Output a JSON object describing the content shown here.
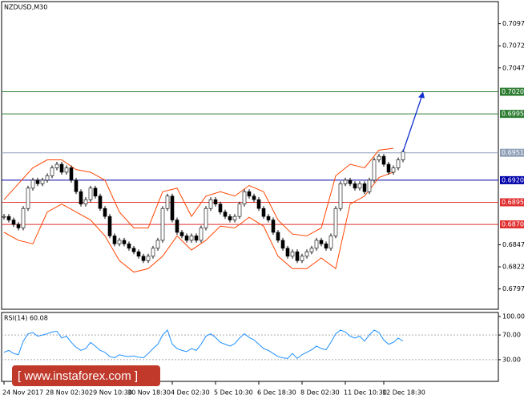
{
  "chart_data": {
    "type": "candlestick",
    "title": "NZDUSD,M30",
    "categories": [
      "24 Nov 2017",
      null,
      null,
      null,
      null,
      null,
      null,
      null,
      null,
      "28 Nov 02:30",
      null,
      null,
      null,
      null,
      null,
      null,
      null,
      null,
      "29 Nov 10:30",
      null,
      null,
      null,
      null,
      null,
      null,
      null,
      "30 Nov 18:30",
      null,
      null,
      null,
      null,
      null,
      null,
      null,
      null,
      "4 Dec 02:30",
      null,
      null,
      null,
      null,
      null,
      null,
      null,
      null,
      "5 Dec 10:30",
      null,
      null,
      null,
      null,
      null,
      null,
      null,
      null,
      "6 Dec 18:30",
      null,
      null,
      null,
      null,
      null,
      null,
      null,
      null,
      "8 Dec 02:30",
      null,
      null,
      null,
      null,
      null,
      null,
      null,
      null,
      "11 Dec 10:30",
      null,
      null,
      null,
      null,
      null,
      null,
      null,
      "12 Dec 18:30",
      null,
      null,
      null,
      null
    ],
    "close": [
      0.6879,
      0.6875,
      0.687,
      0.6866,
      0.6888,
      0.6911,
      0.692,
      0.6916,
      0.692,
      0.6925,
      0.6934,
      0.6938,
      0.6929,
      0.6934,
      0.692,
      0.6907,
      0.6893,
      0.6898,
      0.6911,
      0.6902,
      0.6888,
      0.6879,
      0.6857,
      0.6848,
      0.6852,
      0.6848,
      0.6843,
      0.6839,
      0.6834,
      0.6829,
      0.6834,
      0.6843,
      0.6852,
      0.6888,
      0.6902,
      0.6875,
      0.6861,
      0.6857,
      0.6852,
      0.6857,
      0.6852,
      0.6866,
      0.6888,
      0.6898,
      0.6893,
      0.6884,
      0.6879,
      0.6875,
      0.6879,
      0.6893,
      0.6907,
      0.6902,
      0.6898,
      0.6888,
      0.6879,
      0.6875,
      0.6861,
      0.6852,
      0.6843,
      0.6834,
      0.6839,
      0.6829,
      0.6834,
      0.6839,
      0.6843,
      0.6852,
      0.6848,
      0.6843,
      0.6857,
      0.6888,
      0.6916,
      0.692,
      0.6916,
      0.6911,
      0.6916,
      0.6907,
      0.692,
      0.6943,
      0.6947,
      0.6938,
      0.6929,
      0.6934,
      0.6943,
      0.6952
    ],
    "up_color": "#ffffff",
    "down_color": "#000000",
    "ylim": [
      0.6774,
      0.7122
    ],
    "yticks": [
      0.6797,
      0.6822,
      0.6847,
      0.7047,
      0.7072,
      0.7097
    ],
    "bands": {
      "color": "#ff4500",
      "upper": [
        0.6898,
        0.6916,
        0.6934,
        0.6943,
        0.6943,
        0.6932,
        0.6929,
        0.692,
        0.6884,
        0.6866,
        0.6866,
        0.6907,
        0.6911,
        0.6879,
        0.6902,
        0.6907,
        0.6902,
        0.6914,
        0.6907,
        0.6875,
        0.6859,
        0.6857,
        0.6866,
        0.6925,
        0.6938,
        0.6934,
        0.6954,
        0.6956
      ],
      "lower": [
        0.6861,
        0.6852,
        0.6848,
        0.6884,
        0.6893,
        0.6884,
        0.6875,
        0.6857,
        0.6829,
        0.6816,
        0.682,
        0.6834,
        0.6857,
        0.6841,
        0.6852,
        0.6868,
        0.6866,
        0.6878,
        0.6868,
        0.6834,
        0.682,
        0.682,
        0.6832,
        0.682,
        0.6893,
        0.6902,
        0.6923,
        0.6929
      ]
    },
    "levels": [
      {
        "value": 0.702,
        "label": "0.7020",
        "color": "#2e7d32"
      },
      {
        "value": 0.6995,
        "label": "0.6995",
        "color": "#2e7d32"
      },
      {
        "value": 0.6951,
        "label": "0.6951",
        "color": "#8fa0b8"
      },
      {
        "value": 0.692,
        "label": "0.6920",
        "color": "#0000aa"
      },
      {
        "value": 0.6895,
        "label": "0.6895",
        "color": "#e03030"
      },
      {
        "value": 0.687,
        "label": "0.6870",
        "color": "#e03030"
      }
    ],
    "arrow": {
      "start": 0.6952,
      "end": 0.702,
      "color": "#1030d0"
    },
    "rsi": {
      "title": "RSI(14) 60.08",
      "color": "#1e90ff",
      "ylim": [
        0,
        100
      ],
      "yticks": [
        {
          "value": 100,
          "label": "100.00"
        },
        {
          "value": 70,
          "label": "70.00"
        },
        {
          "value": 30,
          "label": "30.00"
        }
      ],
      "values": [
        42,
        45,
        40,
        38,
        60,
        72,
        74,
        68,
        70,
        72,
        75,
        76,
        65,
        68,
        58,
        50,
        45,
        48,
        58,
        52,
        45,
        42,
        35,
        33,
        38,
        36,
        35,
        36,
        34,
        33,
        40,
        48,
        55,
        70,
        78,
        55,
        48,
        45,
        43,
        48,
        45,
        55,
        68,
        72,
        66,
        58,
        55,
        52,
        56,
        65,
        72,
        66,
        62,
        55,
        48,
        45,
        40,
        35,
        33,
        32,
        40,
        32,
        38,
        42,
        46,
        52,
        48,
        46,
        58,
        72,
        78,
        75,
        68,
        65,
        68,
        60,
        70,
        78,
        74,
        62,
        55,
        58,
        65,
        60.08
      ]
    }
  },
  "watermark": "[ www.instaforex.com ]"
}
